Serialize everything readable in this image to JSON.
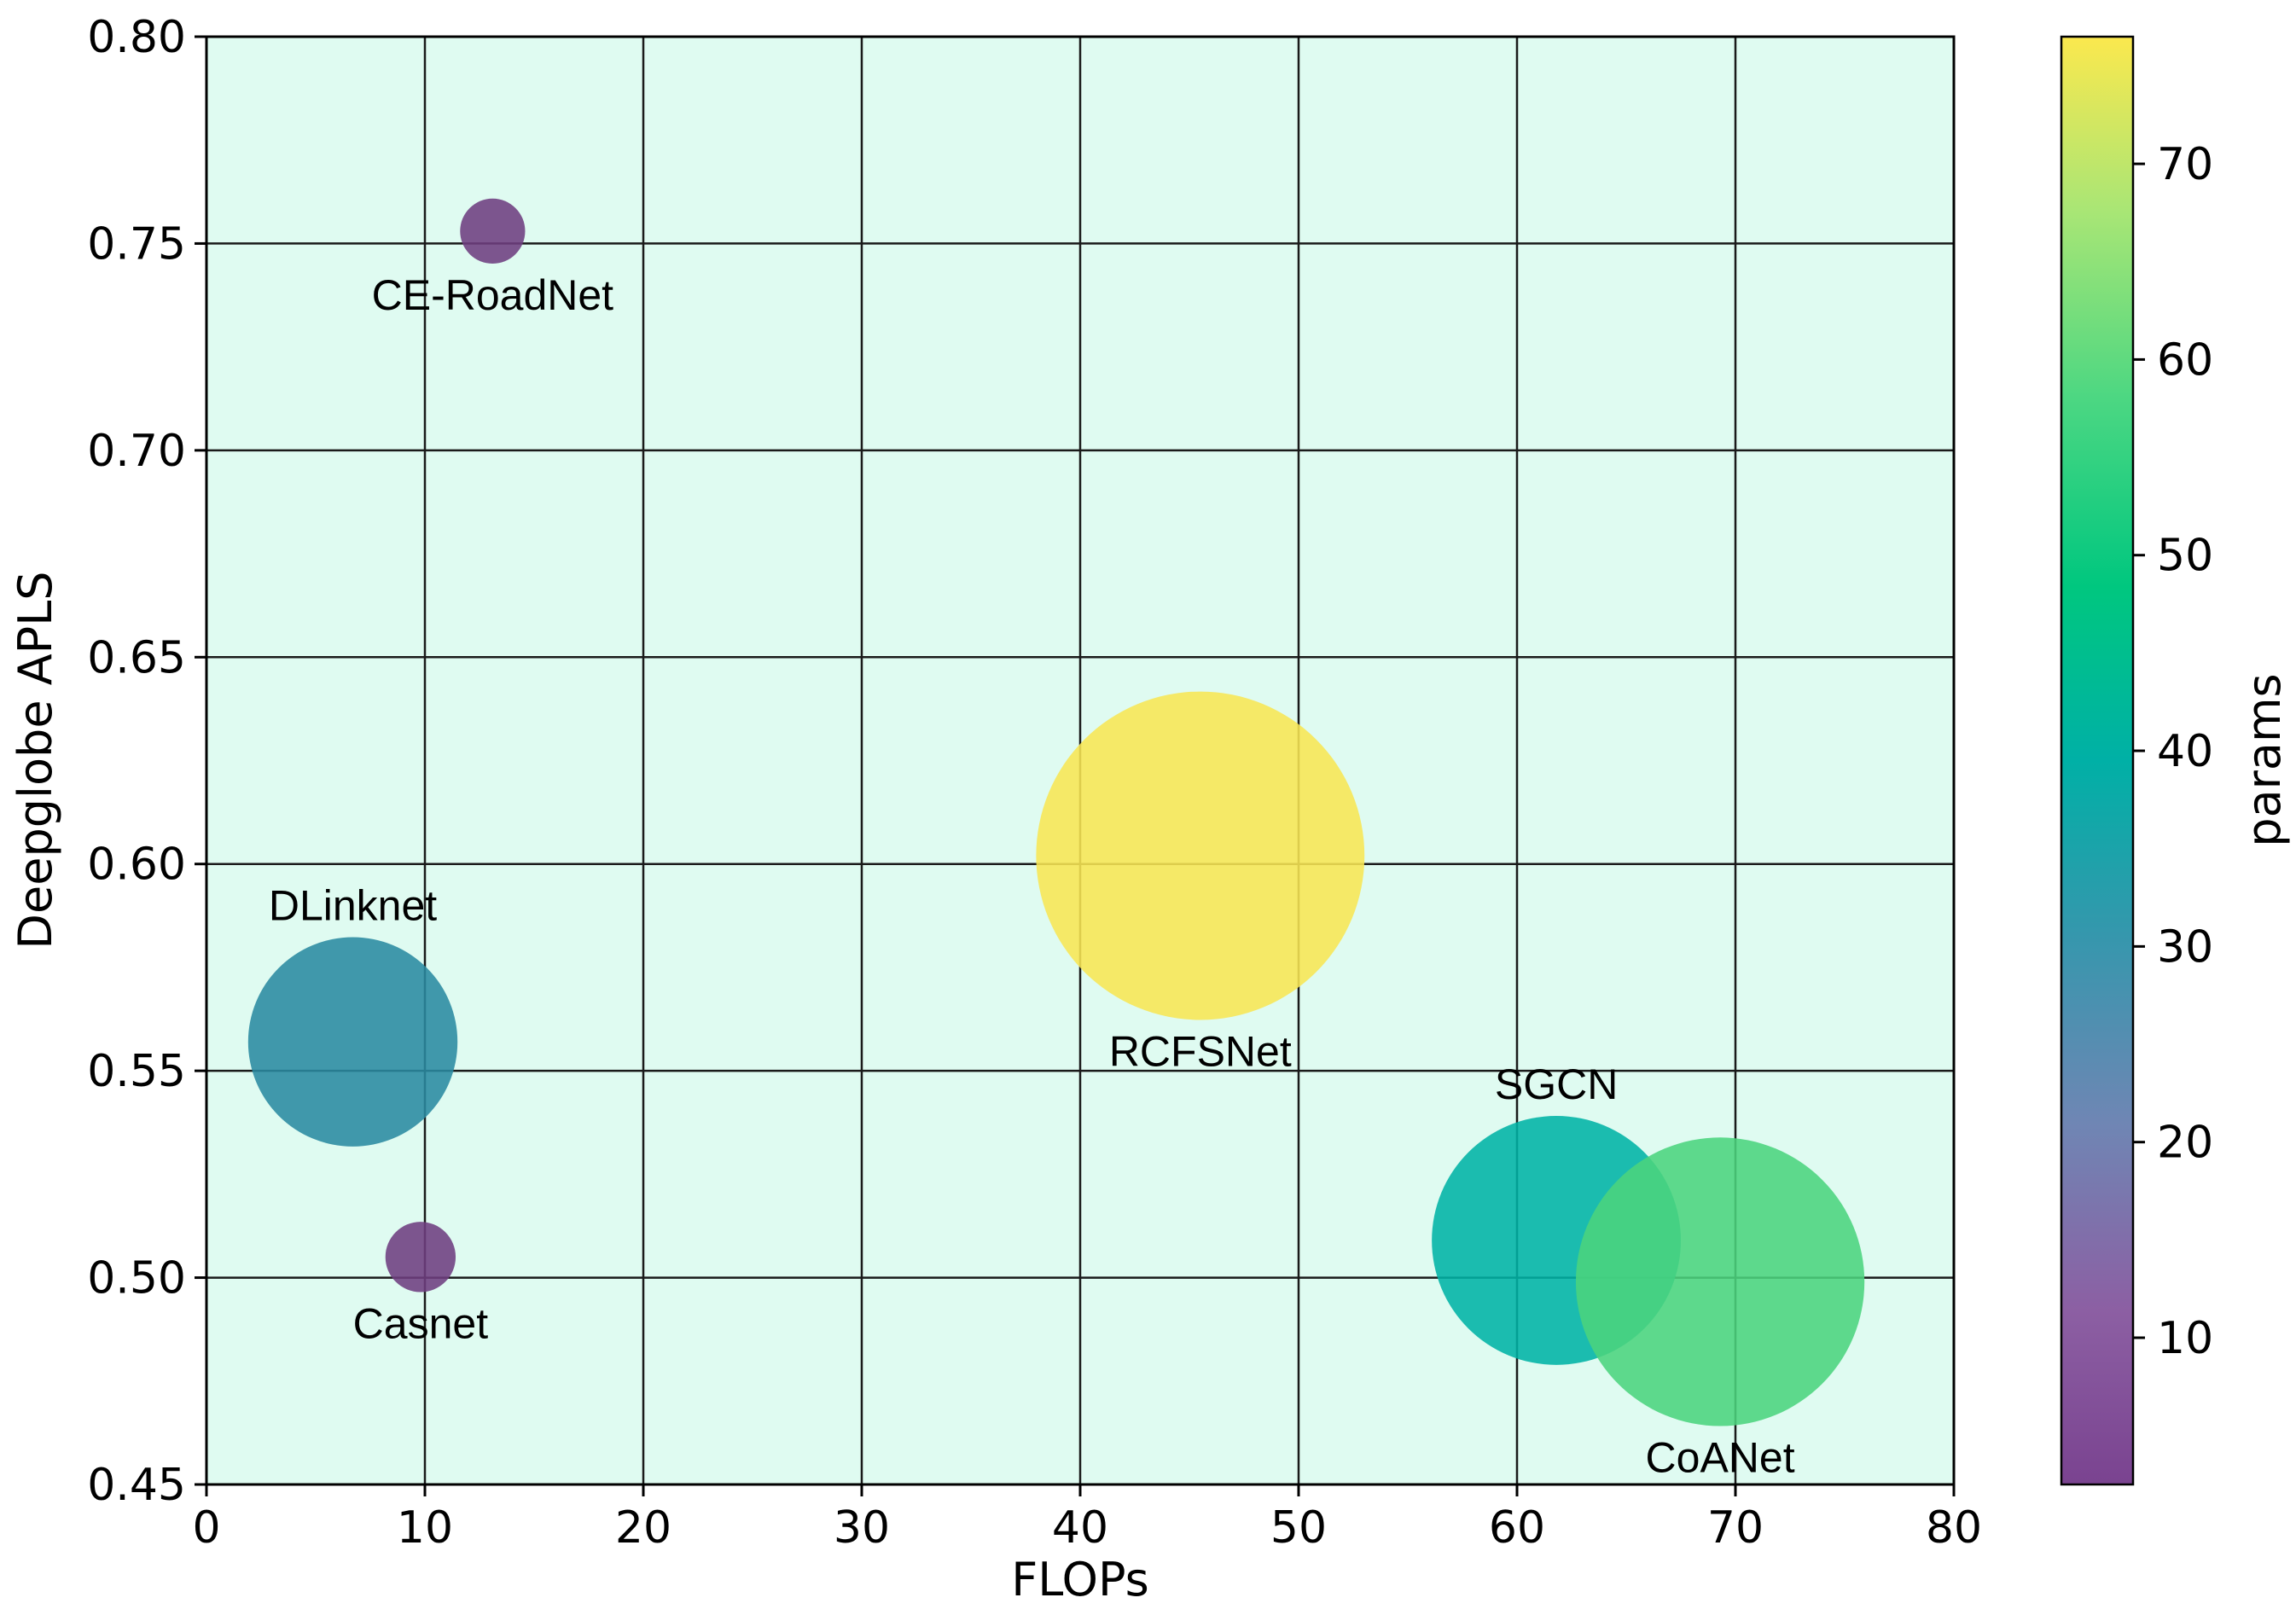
{
  "chart_data": {
    "type": "scatter",
    "subtype": "bubble",
    "title": "",
    "xlabel": "FLOPs",
    "ylabel": "Deepglobe APLS",
    "xlim": [
      0,
      80
    ],
    "ylim": [
      0.45,
      0.8
    ],
    "xticks": [
      "0",
      "10",
      "20",
      "30",
      "40",
      "50",
      "60",
      "70",
      "80"
    ],
    "yticks": [
      "0.45",
      "0.50",
      "0.55",
      "0.60",
      "0.65",
      "0.70",
      "0.75",
      "0.80"
    ],
    "grid": true,
    "plot_background": "#dffbf1",
    "colorbar": {
      "label": "params",
      "range": [
        2.5,
        76.5
      ],
      "ticks": [
        "10",
        "20",
        "30",
        "40",
        "50",
        "60",
        "70"
      ],
      "colormap": "viridis"
    },
    "points": [
      {
        "label": "CE-RoadNet",
        "x": 13.1,
        "y": 0.753,
        "params": 3.0,
        "color": "#6e3d80",
        "label_position": "below"
      },
      {
        "label": "DLinknet",
        "x": 6.7,
        "y": 0.557,
        "params": 31.1,
        "color": "#2a8aa0",
        "label_position": "above"
      },
      {
        "label": "Casnet",
        "x": 9.8,
        "y": 0.505,
        "params": 3.5,
        "color": "#6e3d80",
        "label_position": "below"
      },
      {
        "label": "RCFSNet",
        "x": 45.5,
        "y": 0.602,
        "params": 76.5,
        "color": "#f8e653",
        "label_position": "below"
      },
      {
        "label": "SGCN",
        "x": 61.8,
        "y": 0.509,
        "params": 44.0,
        "color": "#00b3a5",
        "label_position": "above"
      },
      {
        "label": "CoANet",
        "x": 69.3,
        "y": 0.499,
        "params": 59.1,
        "color": "#4bd47d",
        "label_position": "below"
      }
    ]
  }
}
